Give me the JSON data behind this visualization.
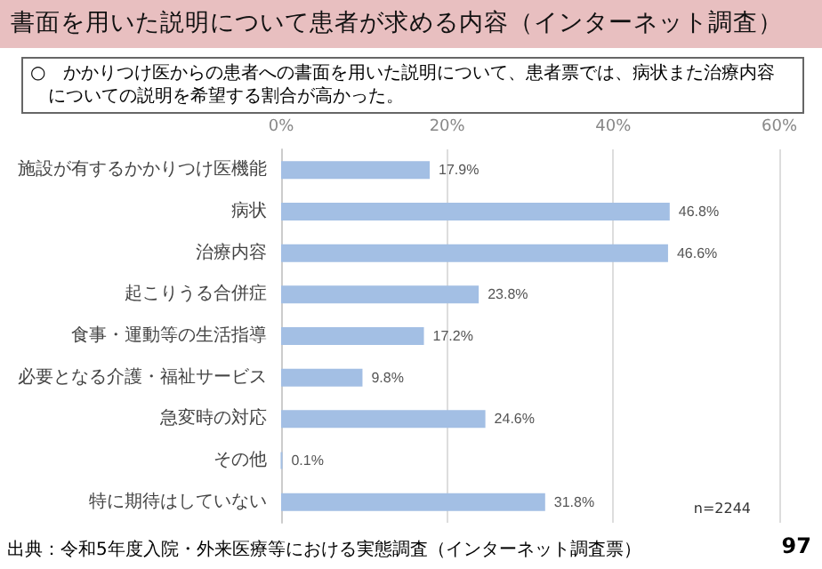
{
  "chart_data": {
    "type": "bar",
    "orientation": "horizontal",
    "title": "書面を用いた説明について患者が求める内容（インターネット調査）",
    "subtitle": "○　かかりつけ医からの患者への書面を用いた説明について、患者票では、病状また治療内容についての説明を希望する割合が高かった。",
    "categories": [
      "施設が有するかかりつけ医機能",
      "病状",
      "治療内容",
      "起こりうる合併症",
      "食事・運動等の生活指導",
      "必要となる介護・福祉サービス",
      "急変時の対応",
      "その他",
      "特に期待はしていない"
    ],
    "values": [
      17.9,
      46.8,
      46.6,
      23.8,
      17.2,
      9.8,
      24.6,
      0.1,
      31.8
    ],
    "value_labels": [
      "17.9%",
      "46.8%",
      "46.6%",
      "23.8%",
      "17.2%",
      "9.8%",
      "24.6%",
      "0.1%",
      "31.8%"
    ],
    "color": "#a3bfe4",
    "xlim": [
      0,
      60
    ],
    "xticks": [
      {
        "value": 0,
        "label": "0%"
      },
      {
        "value": 20,
        "label": "20%"
      },
      {
        "value": 40,
        "label": "40%"
      },
      {
        "value": 60,
        "label": "60%"
      }
    ],
    "grid": "x",
    "annotations": [
      "n=2244",
      "出典：令和5年度入院・外来医療等における実態調査（インターネット調査票）",
      "97"
    ]
  }
}
